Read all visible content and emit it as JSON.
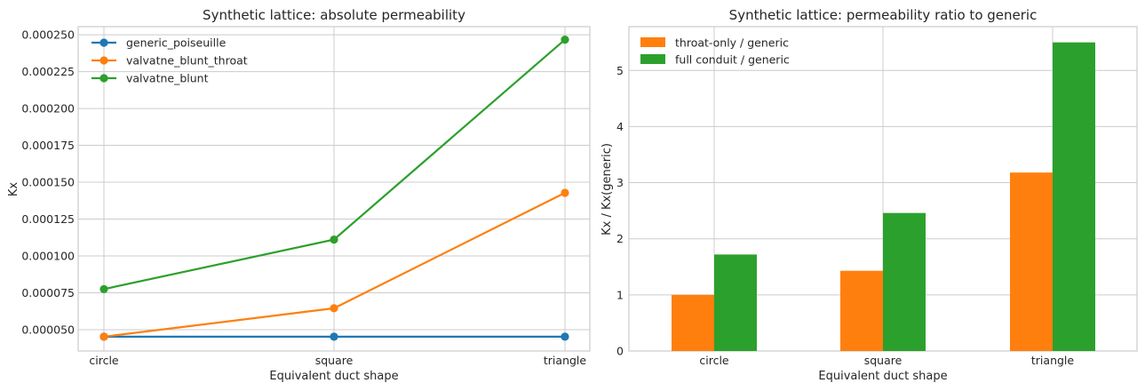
{
  "chart_data": [
    {
      "type": "line",
      "title": "Synthetic lattice: absolute permeability",
      "xlabel": "Equivalent duct shape",
      "ylabel": "Kx",
      "categories": [
        "circle",
        "square",
        "triangle"
      ],
      "ylim": [
        3.55e-05,
        0.0002555
      ],
      "yticks": [
        "0.000050",
        "0.000075",
        "0.000100",
        "0.000125",
        "0.000150",
        "0.000175",
        "0.000200",
        "0.000225",
        "0.000250"
      ],
      "ytick_values": [
        5e-05,
        7.5e-05,
        0.0001,
        0.000125,
        0.00015,
        0.000175,
        0.0002,
        0.000225,
        0.00025
      ],
      "grid": true,
      "legend_position": "top-left",
      "series": [
        {
          "name": "generic_poiseuille",
          "color": "#1f77b4",
          "values": [
            4.52e-05,
            4.52e-05,
            4.52e-05
          ]
        },
        {
          "name": "valvatne_blunt_throat",
          "color": "#ff7f0e",
          "values": [
            4.52e-05,
            6.45e-05,
            0.0001428
          ]
        },
        {
          "name": "valvatne_blunt",
          "color": "#2ca02c",
          "values": [
            7.75e-05,
            0.0001111,
            0.0002467
          ]
        }
      ]
    },
    {
      "type": "bar",
      "title": "Synthetic lattice: permeability ratio to generic",
      "xlabel": "Equivalent duct shape",
      "ylabel": "Kx / Kx(generic)",
      "categories": [
        "circle",
        "square",
        "triangle"
      ],
      "ylim": [
        0,
        5.78
      ],
      "yticks": [
        "0",
        "1",
        "2",
        "3",
        "4",
        "5"
      ],
      "ytick_values": [
        0,
        1,
        2,
        3,
        4,
        5
      ],
      "grid": true,
      "legend_position": "top-left",
      "series": [
        {
          "name": "throat-only / generic",
          "color": "#ff7f0e",
          "values": [
            1.0,
            1.43,
            3.18
          ]
        },
        {
          "name": "full conduit / generic",
          "color": "#2ca02c",
          "values": [
            1.72,
            2.46,
            5.5
          ]
        }
      ]
    }
  ]
}
